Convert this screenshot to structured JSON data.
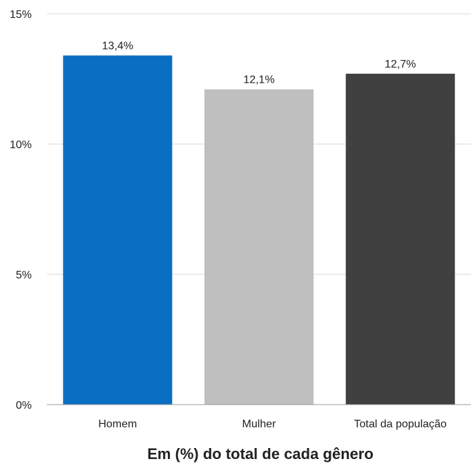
{
  "chart_data": {
    "type": "bar",
    "title": "",
    "xlabel": "Em (%) do total de cada gênero",
    "ylabel": "",
    "categories": [
      "Homem",
      "Mulher",
      "Total da população"
    ],
    "values": [
      13.4,
      12.1,
      12.7
    ],
    "value_labels": [
      "13,4%",
      "12,1%",
      "12,7%"
    ],
    "bar_colors": [
      "#0a6fc2",
      "#bfbfbf",
      "#404040"
    ],
    "ylim": [
      0,
      15
    ],
    "yticks": [
      0,
      5,
      10,
      15
    ],
    "ytick_labels": [
      "0%",
      "5%",
      "10%",
      "15%"
    ],
    "grid": true,
    "gridline_color": "#d9d9d9",
    "legend": "none"
  }
}
